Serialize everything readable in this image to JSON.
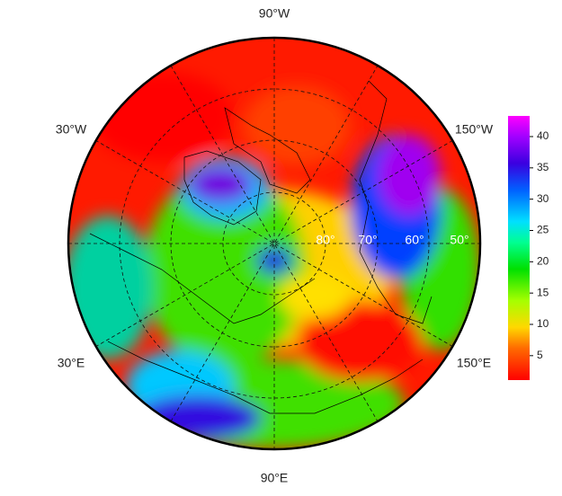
{
  "map": {
    "lon_labels": {
      "top": "90°W",
      "upper_left": "30°W",
      "upper_right": "150°W",
      "lower_left": "30°E",
      "lower_right": "150°E",
      "bottom": "90°E"
    },
    "lat_labels": [
      "80°",
      "70°",
      "60°",
      "50°"
    ],
    "colorbar": {
      "range": [
        1.1,
        43.3
      ],
      "ticks": [
        5,
        10,
        15,
        20,
        25,
        30,
        35,
        40
      ]
    }
  }
}
